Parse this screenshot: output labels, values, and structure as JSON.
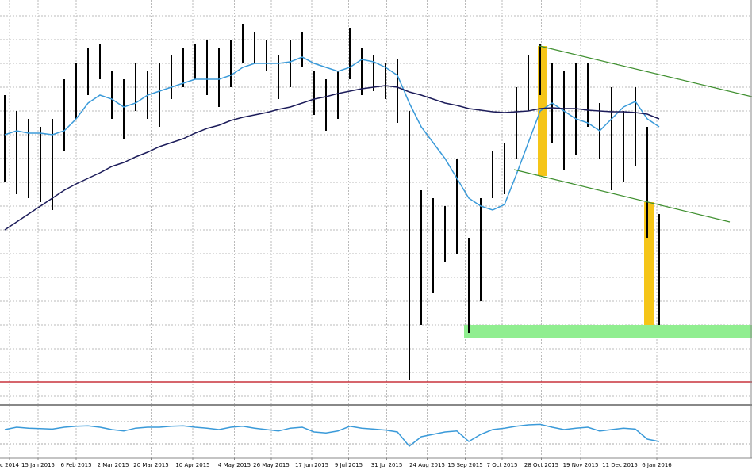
{
  "chart_data": {
    "type": "ohlc",
    "x": [
      0,
      1,
      2,
      3,
      4,
      5,
      6,
      7,
      8,
      9,
      10,
      11,
      12,
      13,
      14,
      15,
      16,
      17,
      18,
      19,
      20,
      21,
      22,
      23,
      24,
      25,
      26,
      27,
      28,
      29,
      30,
      31,
      32,
      33,
      34,
      35,
      36,
      37,
      38,
      39,
      40,
      41,
      42,
      43,
      44,
      45,
      46,
      47,
      48,
      49,
      50,
      51,
      52,
      53,
      54,
      55
    ],
    "high": [
      380,
      360,
      350,
      340,
      350,
      400,
      420,
      440,
      445,
      410,
      400,
      420,
      410,
      420,
      430,
      440,
      445,
      450,
      440,
      450,
      470,
      460,
      450,
      430,
      450,
      460,
      410,
      400,
      410,
      465,
      440,
      430,
      420,
      425,
      360,
      260,
      250,
      240,
      300,
      200,
      250,
      310,
      320,
      390,
      430,
      445,
      420,
      410,
      420,
      420,
      370,
      390,
      360,
      390,
      340,
      230
    ],
    "low": [
      270,
      255,
      250,
      245,
      235,
      310,
      350,
      380,
      400,
      350,
      325,
      360,
      350,
      340,
      375,
      390,
      400,
      380,
      365,
      390,
      420,
      420,
      410,
      375,
      390,
      415,
      355,
      335,
      350,
      400,
      380,
      385,
      375,
      345,
      20,
      90,
      130,
      170,
      180,
      80,
      120,
      250,
      255,
      300,
      360,
      380,
      320,
      285,
      305,
      340,
      300,
      260,
      270,
      290,
      200,
      90
    ],
    "color": "#000000",
    "lines": [
      {
        "color": "#3a9ad9",
        "values": [
          330,
          335,
          332,
          332,
          330,
          335,
          350,
          370,
          380,
          375,
          365,
          370,
          380,
          385,
          390,
          395,
          400,
          400,
          400,
          405,
          415,
          420,
          420,
          420,
          422,
          428,
          420,
          415,
          410,
          415,
          425,
          422,
          415,
          405,
          370,
          340,
          320,
          300,
          275,
          250,
          240,
          235,
          242,
          280,
          320,
          360,
          370,
          360,
          350,
          345,
          335,
          350,
          365,
          372,
          350,
          340
        ]
      },
      {
        "color": "#1c1c5a",
        "values": [
          210,
          220,
          230,
          240,
          250,
          260,
          268,
          275,
          282,
          290,
          295,
          302,
          308,
          315,
          320,
          325,
          332,
          338,
          342,
          348,
          352,
          355,
          358,
          362,
          365,
          370,
          375,
          378,
          382,
          385,
          388,
          390,
          392,
          390,
          384,
          380,
          375,
          370,
          367,
          363,
          361,
          359,
          358,
          359,
          360,
          363,
          364,
          363,
          363,
          361,
          360,
          359,
          359,
          358,
          356,
          350
        ]
      }
    ],
    "xlim": [
      -0.4,
      62.8
    ],
    "xticks": [
      {
        "value": 0.4,
        "label": "c 2014"
      },
      {
        "value": 2.8,
        "label": "15 Jan 2015"
      },
      {
        "value": 6.0,
        "label": "6 Feb 2015"
      },
      {
        "value": 9.1,
        "label": "2 Mar 2015"
      },
      {
        "value": 12.3,
        "label": "20 Mar 2015"
      },
      {
        "value": 15.8,
        "label": "10 Apr 2015"
      },
      {
        "value": 19.3,
        "label": "4 May 2015"
      },
      {
        "value": 22.4,
        "label": "26 May 2015"
      },
      {
        "value": 25.8,
        "label": "17 Jun 2015"
      },
      {
        "value": 28.9,
        "label": "9 Jul 2015"
      },
      {
        "value": 32.1,
        "label": "31 Jul 2015"
      },
      {
        "value": 35.5,
        "label": "24 Aug 2015"
      },
      {
        "value": 38.7,
        "label": "15 Sep 2015"
      },
      {
        "value": 41.8,
        "label": "7 Oct 2015"
      },
      {
        "value": 45.1,
        "label": "28 Oct 2015"
      },
      {
        "value": 48.4,
        "label": "19 Nov 2015"
      },
      {
        "value": 51.7,
        "label": "11 Dec 2015"
      },
      {
        "value": 54.8,
        "label": "6 Jan 2016"
      }
    ],
    "ylim": [
      0,
      500
    ],
    "grid": true,
    "indicator": {
      "color": "#3a9ad9",
      "ylim": [
        0,
        100
      ],
      "values": [
        55,
        60,
        58,
        57,
        56,
        60,
        62,
        63,
        60,
        55,
        52,
        58,
        60,
        60,
        62,
        63,
        60,
        58,
        55,
        60,
        62,
        58,
        55,
        52,
        58,
        60,
        50,
        48,
        52,
        62,
        58,
        56,
        54,
        50,
        20,
        40,
        45,
        50,
        52,
        30,
        45,
        55,
        58,
        62,
        65,
        66,
        60,
        55,
        58,
        60,
        52,
        55,
        58,
        56,
        35,
        30
      ]
    }
  }
}
